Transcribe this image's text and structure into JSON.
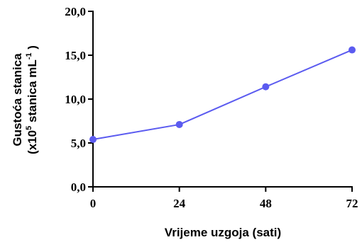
{
  "chart_data": {
    "type": "line",
    "xlabel": "Vrijeme uzgoja (sati)",
    "ylabel_line1": "Gustoća stanica",
    "ylabel_line2_pre": "(x10",
    "ylabel_line2_sup1": "5",
    "ylabel_line2_mid": " stanica mL",
    "ylabel_line2_sup2": "-1",
    "ylabel_line2_post": " )",
    "xlim": [
      0,
      72
    ],
    "ylim": [
      0,
      20
    ],
    "x_ticks": [
      0,
      24,
      48,
      72
    ],
    "x_tick_labels": [
      "0",
      "24",
      "48",
      "72"
    ],
    "y_ticks": [
      0,
      5,
      10,
      15,
      20
    ],
    "y_tick_labels": [
      "0,0",
      "5,0",
      "10,0",
      "15,0",
      "20,0"
    ],
    "grid": false,
    "series": [
      {
        "x": [
          0,
          24,
          48,
          72
        ],
        "y": [
          5.4,
          7.1,
          11.4,
          15.6
        ]
      }
    ],
    "colors": {
      "series": "#5b5bf0",
      "axis": "#000000"
    }
  }
}
